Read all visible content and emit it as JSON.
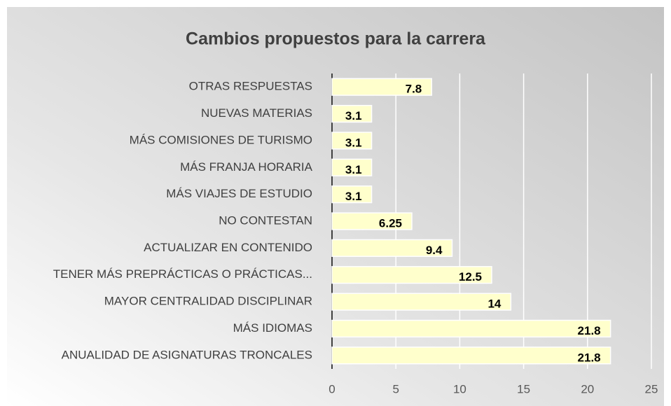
{
  "chart_data": {
    "type": "bar",
    "title": "Cambios propuestos para la carrera",
    "categories": [
      "OTRAS RESPUESTAS",
      "NUEVAS MATERIAS",
      "MÁS COMISIONES DE TURISMO",
      "MÁS FRANJA HORARIA",
      "MÁS VIAJES DE ESTUDIO",
      "NO CONTESTAN",
      "ACTUALIZAR EN CONTENIDO",
      "TENER MÁS PREPRÁCTICAS O PRÁCTICAS...",
      "MAYOR CENTRALIDAD DISCIPLINAR",
      "MÁS IDIOMAS",
      "ANUALIDAD DE ASIGNATURAS TRONCALES"
    ],
    "values": [
      7.8,
      3.1,
      3.1,
      3.1,
      3.1,
      6.25,
      9.4,
      12.5,
      14,
      21.8,
      21.8
    ],
    "color": "#ffffcc",
    "xlim": [
      0,
      25
    ],
    "xticks": [
      0,
      5,
      10,
      15,
      20,
      25
    ],
    "grid": true
  }
}
